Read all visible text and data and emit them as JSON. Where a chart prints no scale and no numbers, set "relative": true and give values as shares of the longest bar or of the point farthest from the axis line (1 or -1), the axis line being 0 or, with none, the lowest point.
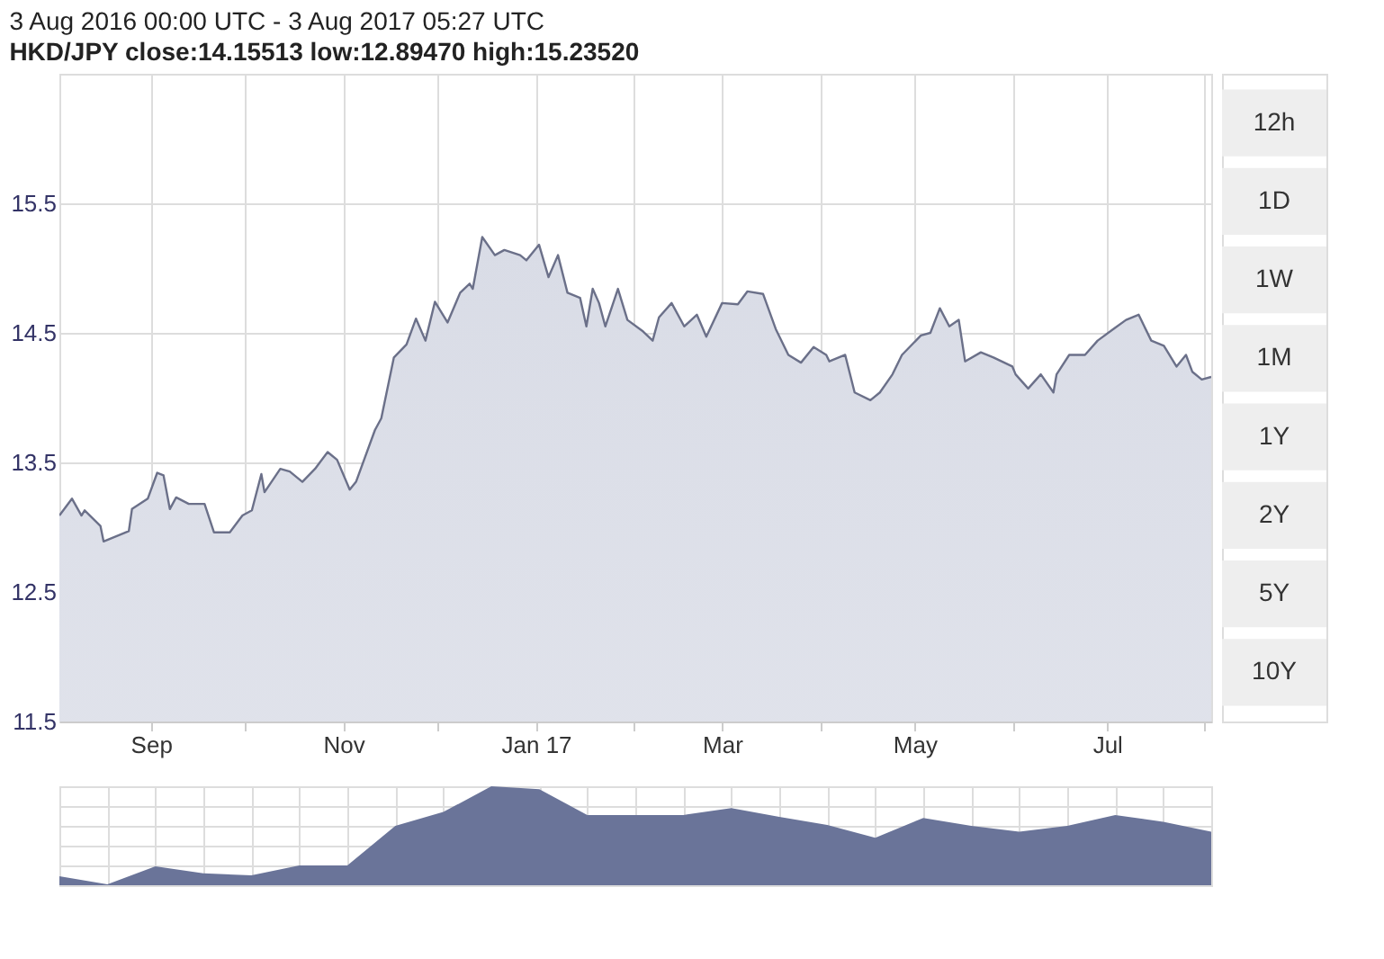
{
  "chart_data": [
    {
      "type": "area",
      "title": "3 Aug 2016 00:00 UTC - 3 Aug 2017 05:27 UTC",
      "subtitle": "HKD/JPY close:14.15513 low:12.89470 high:15.23520",
      "x": [
        "2016-08-03",
        "2016-08-07",
        "2016-08-10",
        "2016-08-11",
        "2016-08-16",
        "2016-08-17",
        "2016-08-25",
        "2016-08-26",
        "2016-08-31",
        "2016-09-03",
        "2016-09-05",
        "2016-09-07",
        "2016-09-09",
        "2016-09-13",
        "2016-09-18",
        "2016-09-21",
        "2016-09-26",
        "2016-09-30",
        "2016-10-03",
        "2016-10-06",
        "2016-10-07",
        "2016-10-12",
        "2016-10-15",
        "2016-10-19",
        "2016-10-23",
        "2016-10-27",
        "2016-10-30",
        "2016-11-03",
        "2016-11-05",
        "2016-11-11",
        "2016-11-13",
        "2016-11-17",
        "2016-11-21",
        "2016-11-24",
        "2016-11-27",
        "2016-11-30",
        "2016-12-04",
        "2016-12-08",
        "2016-12-11",
        "2016-12-12",
        "2016-12-15",
        "2016-12-19",
        "2016-12-22",
        "2016-12-27",
        "2016-12-29",
        "2017-01-02",
        "2017-01-05",
        "2017-01-08",
        "2017-01-11",
        "2017-01-15",
        "2017-01-17",
        "2017-01-19",
        "2017-01-21",
        "2017-01-23",
        "2017-01-27",
        "2017-01-30",
        "2017-02-04",
        "2017-02-07",
        "2017-02-09",
        "2017-02-13",
        "2017-02-17",
        "2017-02-21",
        "2017-02-24",
        "2017-03-01",
        "2017-03-06",
        "2017-03-09",
        "2017-03-14",
        "2017-03-18",
        "2017-03-22",
        "2017-03-26",
        "2017-03-30",
        "2017-04-03",
        "2017-04-04",
        "2017-04-09",
        "2017-04-12",
        "2017-04-17",
        "2017-04-20",
        "2017-04-24",
        "2017-04-27",
        "2017-05-03",
        "2017-05-06",
        "2017-05-09",
        "2017-05-12",
        "2017-05-15",
        "2017-05-17",
        "2017-05-22",
        "2017-05-26",
        "2017-06-01",
        "2017-06-02",
        "2017-06-06",
        "2017-06-10",
        "2017-06-14",
        "2017-06-15",
        "2017-06-19",
        "2017-06-24",
        "2017-06-28",
        "2017-07-03",
        "2017-07-07",
        "2017-07-11",
        "2017-07-15",
        "2017-07-19",
        "2017-07-23",
        "2017-07-26",
        "2017-07-28",
        "2017-07-31",
        "2017-08-03"
      ],
      "series": [
        {
          "color": "#6b7089",
          "values": [
            13.09,
            13.22,
            13.09,
            13.13,
            13.01,
            12.89,
            12.97,
            13.14,
            13.22,
            13.42,
            13.4,
            13.14,
            13.23,
            13.18,
            13.18,
            12.96,
            12.96,
            13.09,
            13.13,
            13.41,
            13.27,
            13.45,
            13.43,
            13.35,
            13.45,
            13.58,
            13.52,
            13.29,
            13.35,
            13.75,
            13.84,
            14.31,
            14.41,
            14.61,
            14.44,
            14.74,
            14.58,
            14.81,
            14.88,
            14.84,
            15.24,
            15.1,
            15.14,
            15.1,
            15.06,
            15.18,
            14.93,
            15.1,
            14.81,
            14.77,
            14.55,
            14.84,
            14.73,
            14.55,
            14.84,
            14.6,
            14.51,
            14.44,
            14.62,
            14.73,
            14.55,
            14.64,
            14.47,
            14.73,
            14.72,
            14.82,
            14.8,
            14.53,
            14.33,
            14.27,
            14.39,
            14.33,
            14.28,
            14.33,
            14.04,
            13.98,
            14.04,
            14.18,
            14.33,
            14.48,
            14.5,
            14.69,
            14.55,
            14.6,
            14.28,
            14.35,
            14.31,
            14.24,
            14.18,
            14.07,
            14.18,
            14.04,
            14.18,
            14.33,
            14.33,
            14.44,
            14.53,
            14.6,
            14.64,
            14.44,
            14.4,
            14.24,
            14.33,
            14.2,
            14.14,
            14.16
          ]
        }
      ],
      "xlim": [
        "2016-08-03",
        "2017-08-03"
      ],
      "xticks": [
        {
          "value": "2016-09-01",
          "label": "Sep"
        },
        {
          "value": "2016-10-01",
          "label": null
        },
        {
          "value": "2016-11-01",
          "label": "Nov"
        },
        {
          "value": "2016-12-01",
          "label": null
        },
        {
          "value": "2017-01-01",
          "label": "Jan 17"
        },
        {
          "value": "2017-02-01",
          "label": null
        },
        {
          "value": "2017-03-01",
          "label": "Mar"
        },
        {
          "value": "2017-04-01",
          "label": null
        },
        {
          "value": "2017-05-01",
          "label": "May"
        },
        {
          "value": "2017-06-01",
          "label": null
        },
        {
          "value": "2017-07-01",
          "label": "Jul"
        },
        {
          "value": "2017-08-01",
          "label": null
        }
      ],
      "ylim": [
        11.5,
        16.5
      ],
      "yticks": [
        11.5,
        12.5,
        13.5,
        14.5,
        15.5
      ],
      "grid": true,
      "annotations": [
        "12h",
        "1D",
        "1W",
        "1M",
        "1Y",
        "2Y",
        "5Y",
        "10Y"
      ]
    },
    {
      "type": "area",
      "relative": true,
      "tick_labels": false,
      "grid": true,
      "categories": [
        null,
        null,
        null,
        null,
        null,
        null,
        null,
        null,
        null,
        null,
        null,
        null,
        null,
        null,
        null,
        null,
        null,
        null,
        null,
        null,
        null,
        null,
        null,
        null,
        null
      ],
      "series": [
        {
          "color": "#6a7499",
          "values": [
            0.09,
            0.01,
            0.19,
            0.12,
            0.1,
            0.2,
            0.2,
            0.6,
            0.74,
            1,
            0.97,
            0.71,
            0.71,
            0.71,
            0.78,
            0.69,
            0.61,
            0.48,
            0.68,
            0.6,
            0.54,
            0.6,
            0.71,
            0.64,
            0.54
          ]
        }
      ]
    }
  ]
}
